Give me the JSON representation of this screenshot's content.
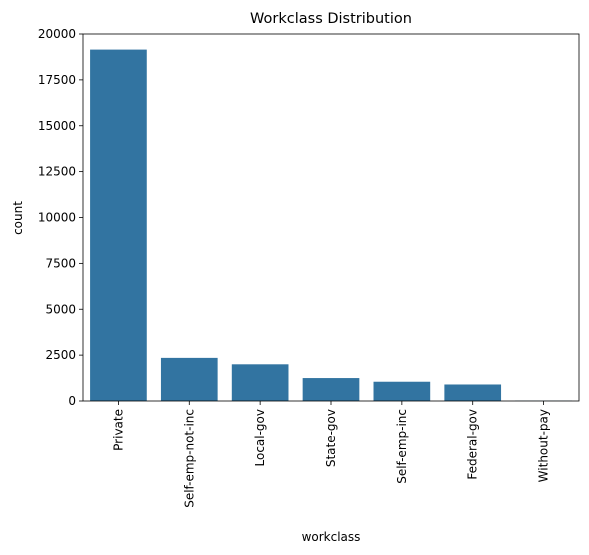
{
  "chart_data": {
    "type": "bar",
    "title": "Workclass Distribution",
    "xlabel": "workclass",
    "ylabel": "count",
    "categories": [
      "Private",
      "Self-emp-not-inc",
      "Local-gov",
      "State-gov",
      "Self-emp-inc",
      "Federal-gov",
      "Without-pay"
    ],
    "values": [
      19150,
      2350,
      2000,
      1250,
      1050,
      900,
      15
    ],
    "ylim": [
      0,
      20000
    ],
    "yticks": [
      0,
      2500,
      5000,
      7500,
      10000,
      12500,
      15000,
      17500,
      20000
    ],
    "grid": false,
    "legend": "none",
    "bar_color": "#3274a1"
  }
}
